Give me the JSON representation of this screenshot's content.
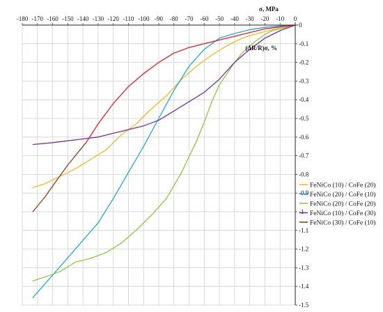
{
  "chart_data": {
    "type": "line",
    "title": "",
    "xlabel": "σ, MPa",
    "ylabel": "(ΔR/R)σ, %",
    "xlim": [
      -180,
      0
    ],
    "ylim": [
      -1.5,
      0
    ],
    "x_ticks": [
      -180,
      -170,
      -160,
      -150,
      -140,
      -130,
      -120,
      -110,
      -100,
      -90,
      -80,
      -70,
      -60,
      -50,
      -40,
      -30,
      -20,
      -10,
      0
    ],
    "x_tick_labels": [
      "-180",
      "-170",
      "-160",
      "-150",
      "-140",
      "-130",
      "-120",
      "-110",
      "-100",
      "-90",
      "-80",
      "-70",
      "-60",
      "-50",
      "-40",
      "-30",
      "-20",
      "-10",
      "0"
    ],
    "y_ticks": [
      0,
      -0.1,
      -0.2,
      -0.3,
      -0.4,
      -0.5,
      -0.6,
      -0.7,
      -0.8,
      -0.9,
      -1.0,
      -1.1,
      -1.2,
      -1.3,
      -1.4,
      -1.5
    ],
    "y_tick_labels": [
      "0",
      "-0.1",
      "-0.2",
      "-0.3",
      "-0.4",
      "-0.5",
      "-0.6",
      "-0.7",
      "-0.8",
      "-0.9",
      "-1",
      "-1.1",
      "-1.2",
      "-1.3",
      "-1.4",
      "-1.5"
    ],
    "grid": true,
    "legend_position": "right",
    "x_axis_position": "top",
    "y_axis_position": "right",
    "series": [
      {
        "name": "FeNiCo (10) / CoFe (20)",
        "color": "#F7B71C",
        "points": [
          [
            -173,
            -0.87
          ],
          [
            -165,
            -0.85
          ],
          [
            -155,
            -0.81
          ],
          [
            -145,
            -0.77
          ],
          [
            -135,
            -0.72
          ],
          [
            -125,
            -0.67
          ],
          [
            -115,
            -0.59
          ],
          [
            -105,
            -0.53
          ],
          [
            -95,
            -0.45
          ],
          [
            -85,
            -0.38
          ],
          [
            -75,
            -0.29
          ],
          [
            -65,
            -0.22
          ],
          [
            -55,
            -0.16
          ],
          [
            -45,
            -0.11
          ],
          [
            -35,
            -0.07
          ],
          [
            -25,
            -0.045
          ],
          [
            -15,
            -0.025
          ],
          [
            -5,
            -0.01
          ],
          [
            0,
            0
          ]
        ]
      },
      {
        "name": "FeNiCo (20) / CoFe (10)",
        "color": "#22A7D6",
        "points": [
          [
            -173,
            -1.46
          ],
          [
            -160,
            -1.34
          ],
          [
            -145,
            -1.2
          ],
          [
            -130,
            -1.06
          ],
          [
            -120,
            -0.93
          ],
          [
            -110,
            -0.79
          ],
          [
            -100,
            -0.65
          ],
          [
            -90,
            -0.5
          ],
          [
            -80,
            -0.35
          ],
          [
            -70,
            -0.22
          ],
          [
            -60,
            -0.13
          ],
          [
            -50,
            -0.07
          ],
          [
            -40,
            -0.045
          ],
          [
            -30,
            -0.025
          ],
          [
            -20,
            -0.012
          ],
          [
            -10,
            -0.005
          ],
          [
            0,
            0
          ]
        ]
      },
      {
        "name": "FeNiCo (20) / CoFe (20)",
        "color": "#8DC63F",
        "points": [
          [
            -173,
            -1.37
          ],
          [
            -165,
            -1.35
          ],
          [
            -155,
            -1.32
          ],
          [
            -145,
            -1.27
          ],
          [
            -135,
            -1.25
          ],
          [
            -125,
            -1.22
          ],
          [
            -115,
            -1.17
          ],
          [
            -105,
            -1.1
          ],
          [
            -95,
            -1.02
          ],
          [
            -85,
            -0.93
          ],
          [
            -75,
            -0.79
          ],
          [
            -65,
            -0.62
          ],
          [
            -60,
            -0.52
          ],
          [
            -55,
            -0.41
          ],
          [
            -50,
            -0.32
          ],
          [
            -45,
            -0.26
          ],
          [
            -40,
            -0.2
          ],
          [
            -35,
            -0.15
          ],
          [
            -30,
            -0.11
          ],
          [
            -25,
            -0.08
          ],
          [
            -20,
            -0.05
          ],
          [
            -15,
            -0.03
          ],
          [
            -10,
            -0.02
          ],
          [
            -5,
            -0.01
          ],
          [
            0,
            0
          ]
        ]
      },
      {
        "name": "FeNiCo (10) / CoFe (30)",
        "color": "#7030A0",
        "points": [
          [
            -173,
            -0.64
          ],
          [
            -160,
            -0.63
          ],
          [
            -150,
            -0.62
          ],
          [
            -140,
            -0.61
          ],
          [
            -130,
            -0.6
          ],
          [
            -120,
            -0.58
          ],
          [
            -110,
            -0.56
          ],
          [
            -100,
            -0.54
          ],
          [
            -90,
            -0.51
          ],
          [
            -80,
            -0.46
          ],
          [
            -70,
            -0.41
          ],
          [
            -60,
            -0.36
          ],
          [
            -50,
            -0.29
          ],
          [
            -40,
            -0.2
          ],
          [
            -30,
            -0.13
          ],
          [
            -25,
            -0.1
          ],
          [
            -20,
            -0.07
          ],
          [
            -10,
            -0.03
          ],
          [
            0,
            0
          ]
        ]
      },
      {
        "name": "FeNiCo (30) / CoFe (10)",
        "color": "#8B3A1A",
        "points": [
          [
            -173,
            -1.0
          ],
          [
            -165,
            -0.92
          ],
          [
            -158,
            -0.84
          ],
          [
            -150,
            -0.75
          ],
          [
            -143,
            -0.68
          ],
          [
            -138,
            -0.63
          ]
        ]
      },
      {
        "name": "",
        "color": "#E31E24",
        "points": [
          [
            -138,
            -0.63
          ],
          [
            -130,
            -0.53
          ],
          [
            -120,
            -0.42
          ],
          [
            -110,
            -0.33
          ],
          [
            -100,
            -0.26
          ],
          [
            -90,
            -0.2
          ],
          [
            -80,
            -0.15
          ],
          [
            -70,
            -0.12
          ],
          [
            -60,
            -0.1
          ],
          [
            -50,
            -0.08
          ],
          [
            -40,
            -0.06
          ],
          [
            -30,
            -0.04
          ],
          [
            -20,
            -0.02
          ],
          [
            -10,
            -0.01
          ],
          [
            0,
            0
          ]
        ]
      }
    ]
  }
}
